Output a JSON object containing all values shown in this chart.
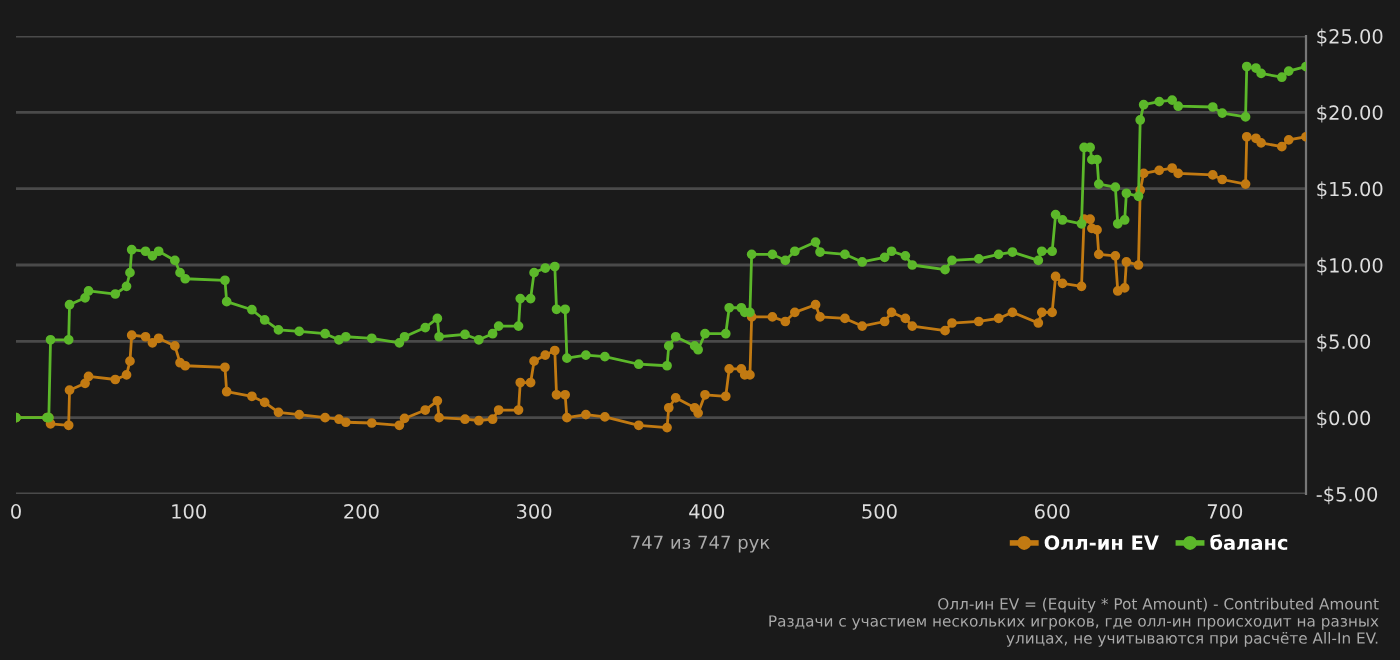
{
  "chart_data": {
    "type": "line",
    "x": [
      0,
      18,
      19,
      20,
      30.5,
      31,
      40,
      42,
      57.5,
      64,
      66,
      67,
      75,
      79,
      82.6,
      92,
      95,
      98,
      121,
      122,
      136.6,
      144,
      152,
      164,
      179,
      187,
      191,
      206,
      222,
      225,
      237,
      244,
      245,
      260,
      268,
      276,
      279.5,
      291,
      292,
      298,
      300,
      306.5,
      312,
      313,
      318,
      319,
      330,
      341,
      360.6,
      377,
      378,
      382,
      393,
      395,
      399,
      411,
      413,
      420,
      422,
      425,
      426,
      438,
      445.5,
      451,
      463,
      465.6,
      480,
      490,
      503,
      507,
      515,
      519,
      538,
      542,
      557.5,
      569,
      577,
      592,
      594,
      600,
      602,
      606,
      617,
      618.5,
      622,
      623,
      626,
      627,
      636.6,
      638,
      642,
      643,
      650,
      651,
      653,
      662,
      669.5,
      673,
      693,
      698.5,
      712,
      712.7,
      718,
      721,
      733,
      737,
      747
    ],
    "series": [
      {
        "name": "Олл-ин EV",
        "color": "#c27a12",
        "values": [
          0,
          0,
          0,
          -0.4,
          -0.5,
          1.8,
          2.25,
          2.7,
          2.5,
          2.8,
          3.7,
          5.4,
          5.3,
          4.9,
          5.2,
          4.7,
          3.6,
          3.4,
          3.3,
          1.7,
          1.4,
          1.0,
          0.35,
          0.2,
          0,
          -0.1,
          -0.3,
          -0.35,
          -0.5,
          -0.05,
          0.5,
          1.1,
          0,
          -0.1,
          -0.2,
          -0.1,
          0.5,
          0.5,
          2.3,
          2.3,
          3.7,
          4.1,
          4.4,
          1.5,
          1.5,
          0,
          0.2,
          0.05,
          -0.5,
          -0.65,
          0.65,
          1.3,
          0.65,
          0.3,
          1.5,
          1.4,
          3.2,
          3.2,
          2.8,
          2.8,
          6.6,
          6.6,
          6.3,
          6.9,
          7.4,
          6.6,
          6.5,
          6.0,
          6.3,
          6.9,
          6.5,
          6.0,
          5.7,
          6.2,
          6.3,
          6.5,
          6.9,
          6.2,
          6.9,
          6.9,
          9.25,
          8.8,
          8.6,
          13.0,
          13.0,
          12.4,
          12.3,
          10.7,
          10.6,
          8.3,
          8.5,
          10.2,
          10.0,
          14.9,
          16.0,
          16.2,
          16.35,
          16.0,
          15.9,
          15.6,
          15.3,
          18.4,
          18.3,
          18.0,
          17.75,
          18.2,
          18.4
        ]
      },
      {
        "name": "баланс",
        "color": "#5cb82a",
        "values": [
          0,
          0,
          0,
          5.1,
          5.1,
          7.4,
          7.85,
          8.3,
          8.1,
          8.6,
          9.5,
          11.0,
          10.9,
          10.6,
          10.9,
          10.3,
          9.5,
          9.1,
          9.0,
          7.6,
          7.07,
          6.4,
          5.75,
          5.65,
          5.5,
          5.1,
          5.3,
          5.2,
          4.9,
          5.3,
          5.9,
          6.5,
          5.3,
          5.45,
          5.1,
          5.5,
          6.0,
          6.0,
          7.8,
          7.8,
          9.5,
          9.8,
          9.9,
          7.1,
          7.1,
          3.9,
          4.1,
          4.0,
          3.5,
          3.4,
          4.7,
          5.3,
          4.7,
          4.45,
          5.5,
          5.5,
          7.2,
          7.2,
          6.9,
          6.9,
          10.7,
          10.7,
          10.3,
          10.9,
          11.5,
          10.85,
          10.7,
          10.2,
          10.5,
          10.9,
          10.6,
          10.0,
          9.7,
          10.3,
          10.4,
          10.7,
          10.85,
          10.3,
          10.9,
          10.9,
          13.3,
          12.95,
          12.7,
          17.7,
          17.7,
          16.9,
          16.9,
          15.3,
          15.1,
          12.7,
          12.95,
          14.7,
          14.5,
          19.5,
          20.5,
          20.7,
          20.8,
          20.4,
          20.35,
          19.95,
          19.7,
          23.0,
          22.9,
          22.55,
          22.3,
          22.7,
          23.0
        ]
      }
    ],
    "xlim": [
      0,
      747
    ],
    "xticks": [
      0,
      100,
      200,
      300,
      400,
      500,
      600,
      700
    ],
    "ylim": [
      -5,
      25
    ],
    "yticks": [
      {
        "value": -5,
        "label": "-$5.00"
      },
      {
        "value": 0,
        "label": "$0.00"
      },
      {
        "value": 5,
        "label": "$5.00"
      },
      {
        "value": 10,
        "label": "$10.00"
      },
      {
        "value": 15,
        "label": "$15.00"
      },
      {
        "value": 20,
        "label": "$20.00"
      },
      {
        "value": 25,
        "label": "$25.00"
      }
    ],
    "grid": "y",
    "legend": "bottom right",
    "marker": "circle",
    "line_style": "solid",
    "annotations": [
      "747 из 747 рук",
      "Олл-ин EV = (Equity * Pot Amount) - Contributed Amount\nРаздачи с участием нескольких игроков, где олл-ин происходит на разных\nулицах, не учитываются при расчёте All-In EV."
    ]
  }
}
